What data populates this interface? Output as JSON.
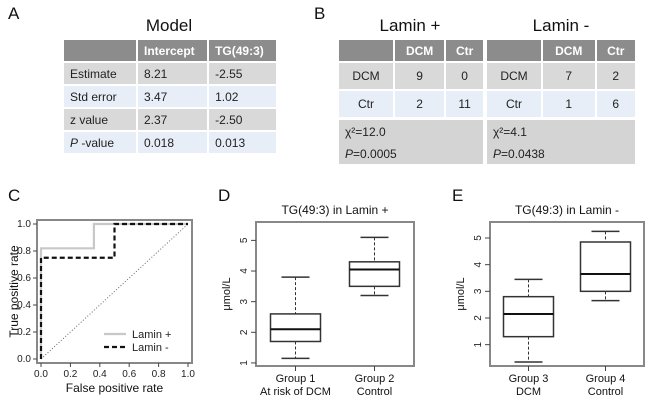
{
  "panels": {
    "A": {
      "letter": "A",
      "title": "Model",
      "headers": [
        "",
        "Intercept",
        "TG(49:3)"
      ],
      "rows": [
        {
          "label": "Estimate",
          "values": [
            "8.21",
            "-2.55"
          ]
        },
        {
          "label": "Std error",
          "values": [
            "3.47",
            "1.02"
          ]
        },
        {
          "label": "z value",
          "values": [
            "2.37",
            "-2.50"
          ]
        },
        {
          "label_italic": "P",
          "label_rest": " -value",
          "values": [
            "0.018",
            "0.013"
          ]
        }
      ]
    },
    "B": {
      "letter": "B",
      "tables": [
        {
          "title": "Lamin +",
          "headers": [
            "",
            "DCM",
            "Ctr"
          ],
          "rows": [
            {
              "label": "DCM",
              "values": [
                "9",
                "0"
              ]
            },
            {
              "label": "Ctr",
              "values": [
                "2",
                "11"
              ]
            }
          ],
          "chi_label": "χ²=12.0",
          "p_italic": "P",
          "p_rest": "=0.0005"
        },
        {
          "title": "Lamin -",
          "headers": [
            "",
            "DCM",
            "Ctr"
          ],
          "rows": [
            {
              "label": "DCM",
              "values": [
                "7",
                "2"
              ]
            },
            {
              "label": "Ctr",
              "values": [
                "1",
                "6"
              ]
            }
          ],
          "chi_label": "χ²=4.1",
          "p_italic": "P",
          "p_rest": "=0.0438"
        }
      ]
    },
    "C": {
      "letter": "C"
    },
    "D": {
      "letter": "D"
    },
    "E": {
      "letter": "E"
    }
  },
  "chart_data": [
    {
      "type": "line",
      "panel": "C",
      "title": "",
      "xlabel": "False positive rate",
      "ylabel": "True positive rate",
      "xlim": [
        0,
        1
      ],
      "ylim": [
        0,
        1
      ],
      "xticks": [
        "0.0",
        "0.2",
        "0.4",
        "0.6",
        "0.8",
        "1.0"
      ],
      "yticks": [
        "0.0",
        "0.2",
        "0.4",
        "0.6",
        "0.8",
        "1.0"
      ],
      "series": [
        {
          "name": "Lamin +",
          "color": "#c8c8c8",
          "dash": "solid",
          "points": [
            [
              0,
              0
            ],
            [
              0,
              0.82
            ],
            [
              0.36,
              0.82
            ],
            [
              0.36,
              1.0
            ],
            [
              1.0,
              1.0
            ]
          ]
        },
        {
          "name": "Lamin -",
          "color": "#111111",
          "dash": "dashed",
          "points": [
            [
              0,
              0
            ],
            [
              0,
              0.75
            ],
            [
              0.5,
              0.75
            ],
            [
              0.5,
              1.0
            ],
            [
              1.0,
              1.0
            ]
          ]
        }
      ],
      "reference_line": [
        [
          0,
          0
        ],
        [
          1,
          1
        ]
      ],
      "legend_position": "bottom-right"
    },
    {
      "type": "box",
      "panel": "D",
      "title": "TG(49:3) in Lamin +",
      "ylabel": "μmol/L",
      "ylim": [
        0.9,
        5.6
      ],
      "yticks": [
        "1",
        "2",
        "3",
        "4",
        "5"
      ],
      "groups": [
        {
          "label": "Group 1",
          "sublabel": "At risk of DCM",
          "min": 1.15,
          "q1": 1.7,
          "median": 2.1,
          "q3": 2.6,
          "max": 3.8
        },
        {
          "label": "Group 2",
          "sublabel": "Control",
          "min": 3.2,
          "q1": 3.5,
          "median": 4.05,
          "q3": 4.3,
          "max": 5.1
        }
      ]
    },
    {
      "type": "box",
      "panel": "E",
      "title": "TG(49:3) in Lamin -",
      "ylabel": "μmol/L",
      "ylim": [
        0.2,
        5.6
      ],
      "yticks": [
        "1",
        "2",
        "3",
        "4",
        "5"
      ],
      "groups": [
        {
          "label": "Group 3",
          "sublabel": "DCM",
          "min": 0.35,
          "q1": 1.3,
          "median": 2.15,
          "q3": 2.8,
          "max": 3.45
        },
        {
          "label": "Group 4",
          "sublabel": "Control",
          "min": 2.65,
          "q1": 3.0,
          "median": 3.65,
          "q3": 4.85,
          "max": 5.25
        }
      ]
    }
  ]
}
